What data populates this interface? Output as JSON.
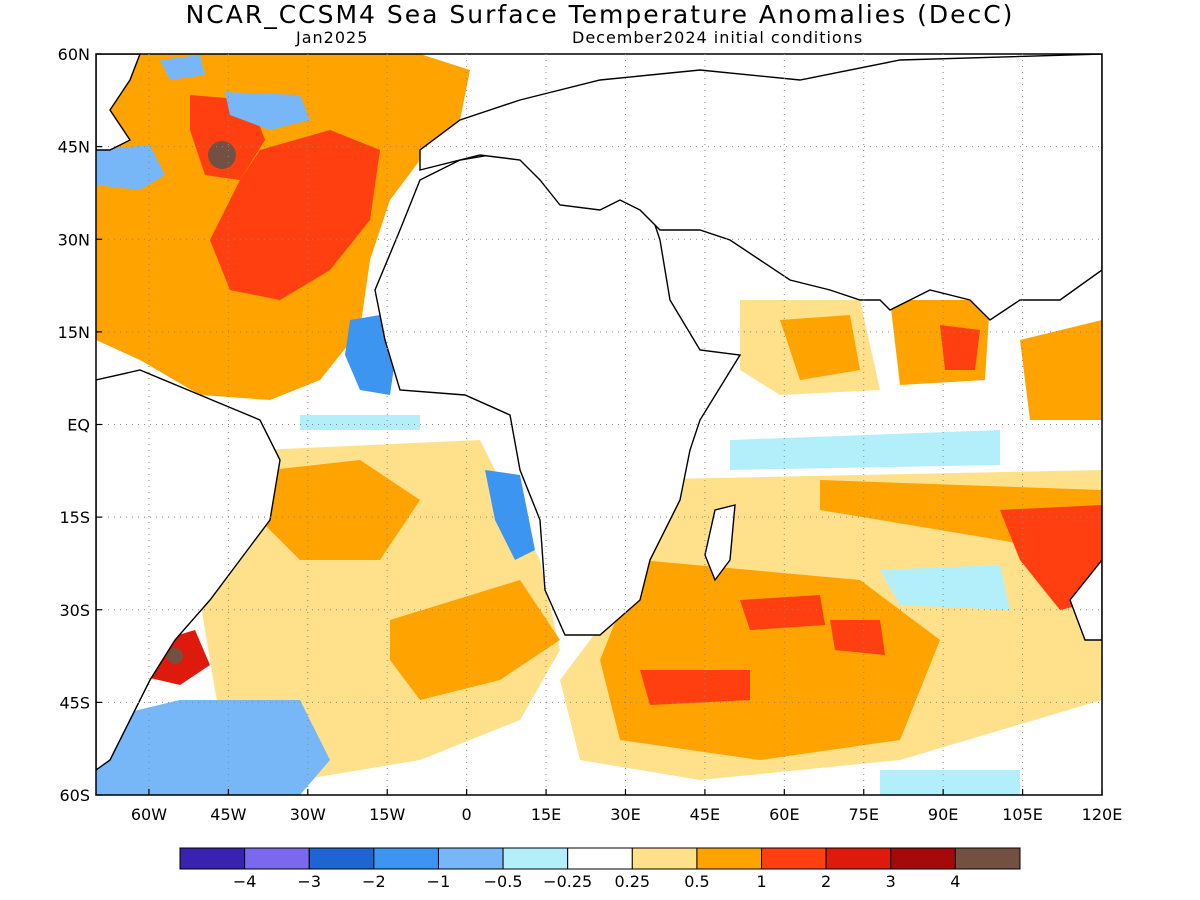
{
  "title": "NCAR_CCSM4 Sea Surface Temperature Anomalies (DecC)",
  "subtitle_left": "Jan2025",
  "subtitle_right": "December2024 initial conditions",
  "map": {
    "lon_range": [
      -70,
      120
    ],
    "lat_range": [
      -60,
      60
    ],
    "lat_labels": [
      "60N",
      "45N",
      "30N",
      "15N",
      "EQ",
      "15S",
      "30S",
      "45S",
      "60S"
    ],
    "lon_labels": [
      "60W",
      "45W",
      "30W",
      "15W",
      "0",
      "15E",
      "30E",
      "45E",
      "60E",
      "75E",
      "90E",
      "105E",
      "120E"
    ],
    "gridlines": "dotted"
  },
  "colorbar": {
    "colors": [
      "#3a22b0",
      "#7b68ee",
      "#1e64d2",
      "#3d95f2",
      "#77b7f7",
      "#b2effa",
      "#ffffff",
      "#ffe18c",
      "#ffa300",
      "#ff3f10",
      "#dd1a0c",
      "#a40a0a",
      "#745042"
    ],
    "labels": [
      "−4",
      "−3",
      "−2",
      "−1",
      "−0.5",
      "−0.25",
      "0.25",
      "0.5",
      "1",
      "2",
      "3",
      "4"
    ]
  }
}
